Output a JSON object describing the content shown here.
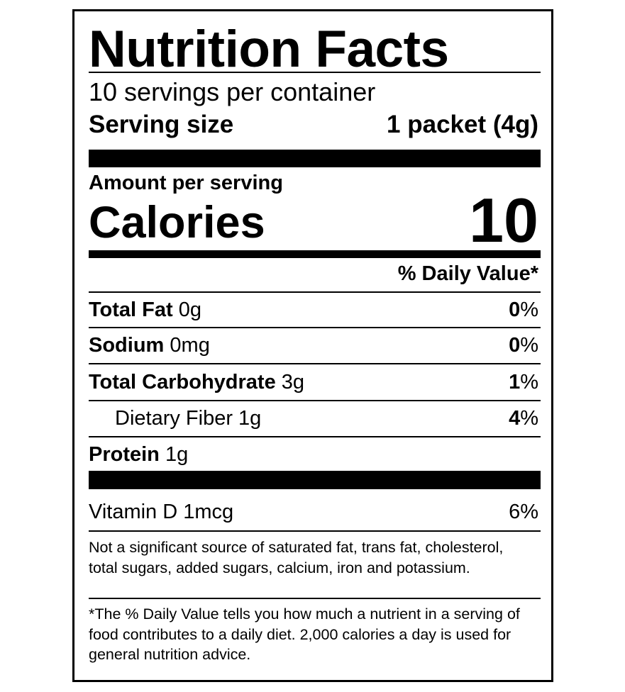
{
  "title": "Nutrition Facts",
  "servings_per_container": "10 servings per container",
  "serving_size": {
    "label": "Serving size",
    "value": "1 packet (4g)"
  },
  "amount_per_serving": "Amount per serving",
  "calories": {
    "label": "Calories",
    "value": "10"
  },
  "daily_value_header": "% Daily Value*",
  "nutrients": [
    {
      "name": "Total Fat",
      "amount": "0g",
      "dv_num": "0",
      "dv_pct": "%"
    },
    {
      "name": "Sodium",
      "amount": "0mg",
      "dv_num": "0",
      "dv_pct": "%"
    },
    {
      "name": "Total Carbohydrate",
      "amount": "3g",
      "dv_num": "1",
      "dv_pct": "%"
    },
    {
      "name": "Dietary Fiber 1g",
      "dv_num": "4",
      "dv_pct": "%"
    },
    {
      "name": "Protein",
      "amount": "1g"
    }
  ],
  "vitamins": [
    {
      "name": "Vitamin D 1mcg",
      "dv": "6%"
    }
  ],
  "not_significant": "Not a significant source of saturated fat, trans fat, cholesterol, total sugars, added sugars, calcium, iron and potassium.",
  "footnote": "*The % Daily Value tells you how much a nutrient in a serving of food contributes to a daily diet. 2,000 calories a day is used for general nutrition advice."
}
